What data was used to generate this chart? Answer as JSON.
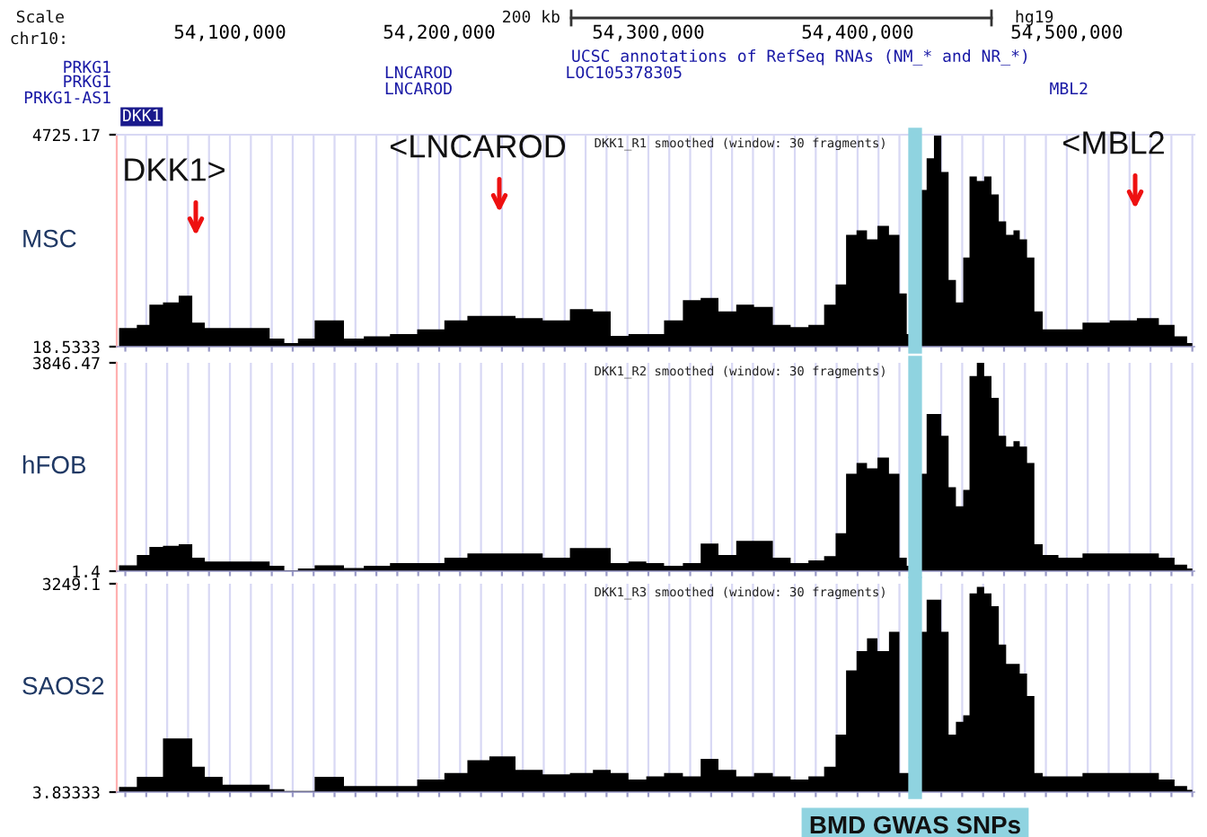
{
  "chart_data": [
    {
      "type": "area",
      "title": "DKK1_R1 smoothed (window: 30 fragments)",
      "ylabel": "MSC",
      "x": [
        54047000,
        54052000,
        54059000,
        54064000,
        54072000,
        54079000,
        54085000,
        54091000,
        54102000,
        54115000,
        54123000,
        54129000,
        54136000,
        54145000,
        54151000,
        54158000,
        54170000,
        54183000,
        54196000,
        54209000,
        54218000,
        54230000,
        54243000,
        54256000,
        54269000,
        54278000,
        54286000,
        54295000,
        54303000,
        54312000,
        54321000,
        54329000,
        54338000,
        54346000,
        54355000,
        54364000,
        54372000,
        54381000,
        54387000,
        54392000,
        54397000,
        54402000,
        54407000,
        54412000,
        54418000,
        54422000,
        54425000,
        54431000,
        54435000,
        54438000,
        54442000,
        54445000,
        54449000,
        54452000,
        54455000,
        54459000,
        54462000,
        54466000,
        54469000,
        54473000,
        54476000,
        54479000,
        54483000,
        54486000,
        54491000,
        54501000,
        54514000,
        54527000,
        54540000,
        54548000,
        54555000,
        54560000
      ],
      "series": [
        {
          "color": "#000000",
          "values": [
            430,
            430,
            500,
            950,
            1000,
            1150,
            550,
            430,
            430,
            430,
            200,
            100,
            200,
            600,
            600,
            200,
            250,
            300,
            400,
            600,
            700,
            700,
            650,
            600,
            850,
            800,
            260,
            300,
            300,
            600,
            1050,
            1100,
            800,
            950,
            900,
            500,
            450,
            500,
            950,
            1400,
            2500,
            2600,
            2400,
            2700,
            2500,
            1200,
            300,
            3500,
            4200,
            4725,
            3900,
            1500,
            1000,
            2000,
            3800,
            3700,
            3800,
            3400,
            2800,
            2500,
            2600,
            2400,
            2000,
            800,
            400,
            400,
            550,
            600,
            650,
            500,
            250,
            100
          ]
        }
      ],
      "xlim": [
        54045900,
        54561000
      ],
      "ylim": [
        18.5333,
        4725.17
      ],
      "yticks": [
        18.5333,
        4725.17
      ],
      "xticks": [
        {
          "value": 54050000,
          "label": null
        },
        {
          "value": 54060000,
          "label": null
        },
        {
          "value": 54070000,
          "label": null
        },
        {
          "value": 54080000,
          "label": null
        },
        {
          "value": 54090000,
          "label": null
        },
        {
          "value": 54100000,
          "label": "54,100,000"
        },
        {
          "value": 54110000,
          "label": null
        },
        {
          "value": 54120000,
          "label": null
        },
        {
          "value": 54130000,
          "label": null
        },
        {
          "value": 54140000,
          "label": null
        },
        {
          "value": 54150000,
          "label": null
        },
        {
          "value": 54160000,
          "label": null
        },
        {
          "value": 54170000,
          "label": null
        },
        {
          "value": 54180000,
          "label": null
        },
        {
          "value": 54190000,
          "label": null
        },
        {
          "value": 54200000,
          "label": "54,200,000"
        },
        {
          "value": 54210000,
          "label": null
        },
        {
          "value": 54220000,
          "label": null
        },
        {
          "value": 54230000,
          "label": null
        },
        {
          "value": 54240000,
          "label": null
        },
        {
          "value": 54250000,
          "label": null
        },
        {
          "value": 54260000,
          "label": null
        },
        {
          "value": 54270000,
          "label": null
        },
        {
          "value": 54280000,
          "label": null
        },
        {
          "value": 54290000,
          "label": null
        },
        {
          "value": 54300000,
          "label": "54,300,000"
        },
        {
          "value": 54310000,
          "label": null
        },
        {
          "value": 54320000,
          "label": null
        },
        {
          "value": 54330000,
          "label": null
        },
        {
          "value": 54340000,
          "label": null
        },
        {
          "value": 54350000,
          "label": null
        },
        {
          "value": 54360000,
          "label": null
        },
        {
          "value": 54370000,
          "label": null
        },
        {
          "value": 54380000,
          "label": null
        },
        {
          "value": 54390000,
          "label": null
        },
        {
          "value": 54400000,
          "label": "54,400,000"
        },
        {
          "value": 54410000,
          "label": null
        },
        {
          "value": 54420000,
          "label": null
        },
        {
          "value": 54430000,
          "label": null
        },
        {
          "value": 54440000,
          "label": null
        },
        {
          "value": 54450000,
          "label": null
        },
        {
          "value": 54460000,
          "label": null
        },
        {
          "value": 54470000,
          "label": null
        },
        {
          "value": 54480000,
          "label": null
        },
        {
          "value": 54490000,
          "label": null
        },
        {
          "value": 54500000,
          "label": "54,500,000"
        },
        {
          "value": 54510000,
          "label": null
        },
        {
          "value": 54520000,
          "label": null
        },
        {
          "value": 54530000,
          "label": null
        },
        {
          "value": 54540000,
          "label": null
        },
        {
          "value": 54550000,
          "label": null
        },
        {
          "value": 54560000,
          "label": null
        }
      ],
      "grid": "x",
      "ref_lines": [
        {
          "axis": "x",
          "value": 54427500,
          "label": null,
          "color": "#8fd3e0"
        }
      ],
      "annotations": [
        "DKK1>",
        "<LNCAROD",
        "<MBL2",
        "Scale",
        "chr10:",
        "200 kb",
        "hg19",
        "UCSC annotations of RefSeq RNAs (NM_* and NR_*)",
        "PRKG1",
        "PRKG1",
        "PRKG1-AS1",
        "DKK1",
        "LNCAROD",
        "LNCAROD",
        "LOC105378305",
        "MBL2"
      ]
    },
    {
      "type": "area",
      "title": "DKK1_R2 smoothed (window: 30 fragments)",
      "ylabel": "hFOB",
      "x": [
        54047000,
        54052000,
        54059000,
        54064000,
        54072000,
        54079000,
        54085000,
        54091000,
        54102000,
        54115000,
        54123000,
        54129000,
        54136000,
        54145000,
        54151000,
        54158000,
        54170000,
        54183000,
        54196000,
        54209000,
        54218000,
        54230000,
        54243000,
        54256000,
        54269000,
        54278000,
        54286000,
        54295000,
        54303000,
        54312000,
        54321000,
        54329000,
        54338000,
        54346000,
        54355000,
        54364000,
        54372000,
        54381000,
        54387000,
        54392000,
        54397000,
        54402000,
        54407000,
        54412000,
        54418000,
        54422000,
        54425000,
        54431000,
        54435000,
        54438000,
        54442000,
        54445000,
        54449000,
        54452000,
        54455000,
        54459000,
        54462000,
        54466000,
        54469000,
        54473000,
        54476000,
        54479000,
        54483000,
        54486000,
        54491000,
        54501000,
        54514000,
        54527000,
        54540000,
        54548000,
        54555000,
        54560000
      ],
      "series": [
        {
          "color": "#000000",
          "values": [
            110,
            110,
            300,
            450,
            470,
            500,
            250,
            180,
            180,
            180,
            100,
            20,
            50,
            110,
            110,
            60,
            100,
            150,
            150,
            250,
            330,
            330,
            330,
            250,
            430,
            430,
            150,
            180,
            150,
            100,
            150,
            510,
            300,
            560,
            560,
            250,
            150,
            200,
            280,
            700,
            1800,
            2000,
            1900,
            2100,
            1800,
            250,
            100,
            1800,
            2900,
            2900,
            2500,
            1550,
            1200,
            1500,
            3600,
            3846,
            3600,
            3200,
            2500,
            2300,
            2400,
            2300,
            2000,
            500,
            300,
            250,
            330,
            330,
            330,
            250,
            120,
            50
          ]
        }
      ],
      "xlim": [
        54045900,
        54561000
      ],
      "ylim": [
        1.4,
        3846.47
      ],
      "yticks": [
        1.4,
        3846.47
      ],
      "xticks": [
        {
          "value": 54050000,
          "label": null
        },
        {
          "value": 54060000,
          "label": null
        },
        {
          "value": 54070000,
          "label": null
        },
        {
          "value": 54080000,
          "label": null
        },
        {
          "value": 54090000,
          "label": null
        },
        {
          "value": 54100000,
          "label": null
        },
        {
          "value": 54110000,
          "label": null
        },
        {
          "value": 54120000,
          "label": null
        },
        {
          "value": 54130000,
          "label": null
        },
        {
          "value": 54140000,
          "label": null
        },
        {
          "value": 54150000,
          "label": null
        },
        {
          "value": 54160000,
          "label": null
        },
        {
          "value": 54170000,
          "label": null
        },
        {
          "value": 54180000,
          "label": null
        },
        {
          "value": 54190000,
          "label": null
        },
        {
          "value": 54200000,
          "label": null
        },
        {
          "value": 54210000,
          "label": null
        },
        {
          "value": 54220000,
          "label": null
        },
        {
          "value": 54230000,
          "label": null
        },
        {
          "value": 54240000,
          "label": null
        },
        {
          "value": 54250000,
          "label": null
        },
        {
          "value": 54260000,
          "label": null
        },
        {
          "value": 54270000,
          "label": null
        },
        {
          "value": 54280000,
          "label": null
        },
        {
          "value": 54290000,
          "label": null
        },
        {
          "value": 54300000,
          "label": null
        },
        {
          "value": 54310000,
          "label": null
        },
        {
          "value": 54320000,
          "label": null
        },
        {
          "value": 54330000,
          "label": null
        },
        {
          "value": 54340000,
          "label": null
        },
        {
          "value": 54350000,
          "label": null
        },
        {
          "value": 54360000,
          "label": null
        },
        {
          "value": 54370000,
          "label": null
        },
        {
          "value": 54380000,
          "label": null
        },
        {
          "value": 54390000,
          "label": null
        },
        {
          "value": 54400000,
          "label": null
        },
        {
          "value": 54410000,
          "label": null
        },
        {
          "value": 54420000,
          "label": null
        },
        {
          "value": 54430000,
          "label": null
        },
        {
          "value": 54440000,
          "label": null
        },
        {
          "value": 54450000,
          "label": null
        },
        {
          "value": 54460000,
          "label": null
        },
        {
          "value": 54470000,
          "label": null
        },
        {
          "value": 54480000,
          "label": null
        },
        {
          "value": 54490000,
          "label": null
        },
        {
          "value": 54500000,
          "label": null
        },
        {
          "value": 54510000,
          "label": null
        },
        {
          "value": 54520000,
          "label": null
        },
        {
          "value": 54530000,
          "label": null
        },
        {
          "value": 54540000,
          "label": null
        },
        {
          "value": 54550000,
          "label": null
        },
        {
          "value": 54560000,
          "label": null
        }
      ],
      "grid": "x",
      "tick_labels": "y",
      "ref_lines": [
        {
          "axis": "x",
          "value": 54427500,
          "label": null,
          "color": "#8fd3e0"
        }
      ]
    },
    {
      "type": "area",
      "title": "DKK1_R3 smoothed (window: 30 fragments)",
      "ylabel": "SAOS2",
      "x": [
        54047000,
        54052000,
        54059000,
        54064000,
        54072000,
        54079000,
        54085000,
        54091000,
        54102000,
        54115000,
        54123000,
        54129000,
        54136000,
        54145000,
        54151000,
        54158000,
        54170000,
        54183000,
        54196000,
        54209000,
        54218000,
        54230000,
        54243000,
        54256000,
        54269000,
        54278000,
        54286000,
        54295000,
        54303000,
        54312000,
        54321000,
        54329000,
        54338000,
        54346000,
        54355000,
        54364000,
        54372000,
        54381000,
        54387000,
        54392000,
        54397000,
        54402000,
        54407000,
        54412000,
        54418000,
        54422000,
        54425000,
        54431000,
        54435000,
        54438000,
        54442000,
        54445000,
        54449000,
        54452000,
        54455000,
        54459000,
        54462000,
        54466000,
        54469000,
        54473000,
        54476000,
        54479000,
        54483000,
        54486000,
        54491000,
        54501000,
        54514000,
        54527000,
        54540000,
        54548000,
        54555000,
        54560000
      ],
      "series": [
        {
          "color": "#000000",
          "values": [
            85,
            85,
            240,
            240,
            840,
            840,
            400,
            240,
            120,
            120,
            50,
            20,
            20,
            240,
            240,
            100,
            100,
            100,
            200,
            300,
            500,
            560,
            350,
            280,
            300,
            350,
            300,
            200,
            250,
            300,
            250,
            520,
            350,
            250,
            300,
            250,
            200,
            250,
            400,
            900,
            1900,
            2200,
            2400,
            2200,
            2500,
            300,
            300,
            2500,
            3000,
            3000,
            2500,
            900,
            1100,
            1200,
            3100,
            3200,
            3100,
            2900,
            2300,
            2000,
            2000,
            1850,
            1500,
            300,
            250,
            250,
            300,
            300,
            300,
            200,
            100,
            40
          ]
        }
      ],
      "xlim": [
        54045900,
        54561000
      ],
      "ylim": [
        3.83333,
        3249.1
      ],
      "yticks": [
        3.83333,
        3249.1
      ],
      "xticks": [
        {
          "value": 54050000,
          "label": null
        },
        {
          "value": 54060000,
          "label": null
        },
        {
          "value": 54070000,
          "label": null
        },
        {
          "value": 54080000,
          "label": null
        },
        {
          "value": 54090000,
          "label": null
        },
        {
          "value": 54100000,
          "label": null
        },
        {
          "value": 54110000,
          "label": null
        },
        {
          "value": 54120000,
          "label": null
        },
        {
          "value": 54130000,
          "label": null
        },
        {
          "value": 54140000,
          "label": null
        },
        {
          "value": 54150000,
          "label": null
        },
        {
          "value": 54160000,
          "label": null
        },
        {
          "value": 54170000,
          "label": null
        },
        {
          "value": 54180000,
          "label": null
        },
        {
          "value": 54190000,
          "label": null
        },
        {
          "value": 54200000,
          "label": null
        },
        {
          "value": 54210000,
          "label": null
        },
        {
          "value": 54220000,
          "label": null
        },
        {
          "value": 54230000,
          "label": null
        },
        {
          "value": 54240000,
          "label": null
        },
        {
          "value": 54250000,
          "label": null
        },
        {
          "value": 54260000,
          "label": null
        },
        {
          "value": 54270000,
          "label": null
        },
        {
          "value": 54280000,
          "label": null
        },
        {
          "value": 54290000,
          "label": null
        },
        {
          "value": 54300000,
          "label": null
        },
        {
          "value": 54310000,
          "label": null
        },
        {
          "value": 54320000,
          "label": null
        },
        {
          "value": 54330000,
          "label": null
        },
        {
          "value": 54340000,
          "label": null
        },
        {
          "value": 54350000,
          "label": null
        },
        {
          "value": 54360000,
          "label": null
        },
        {
          "value": 54370000,
          "label": null
        },
        {
          "value": 54380000,
          "label": null
        },
        {
          "value": 54390000,
          "label": null
        },
        {
          "value": 54400000,
          "label": null
        },
        {
          "value": 54410000,
          "label": null
        },
        {
          "value": 54420000,
          "label": null
        },
        {
          "value": 54430000,
          "label": null
        },
        {
          "value": 54440000,
          "label": null
        },
        {
          "value": 54450000,
          "label": null
        },
        {
          "value": 54460000,
          "label": null
        },
        {
          "value": 54470000,
          "label": null
        },
        {
          "value": 54480000,
          "label": null
        },
        {
          "value": 54490000,
          "label": null
        },
        {
          "value": 54500000,
          "label": null
        },
        {
          "value": 54510000,
          "label": null
        },
        {
          "value": 54520000,
          "label": null
        },
        {
          "value": 54530000,
          "label": null
        },
        {
          "value": 54540000,
          "label": null
        },
        {
          "value": 54550000,
          "label": null
        },
        {
          "value": 54560000,
          "label": null
        }
      ],
      "grid": "x",
      "tick_labels": "y",
      "ref_lines": [
        {
          "axis": "x",
          "value": 54427500,
          "label": "BMD GWAS SNPs",
          "color": "#8fd3e0"
        }
      ]
    }
  ]
}
